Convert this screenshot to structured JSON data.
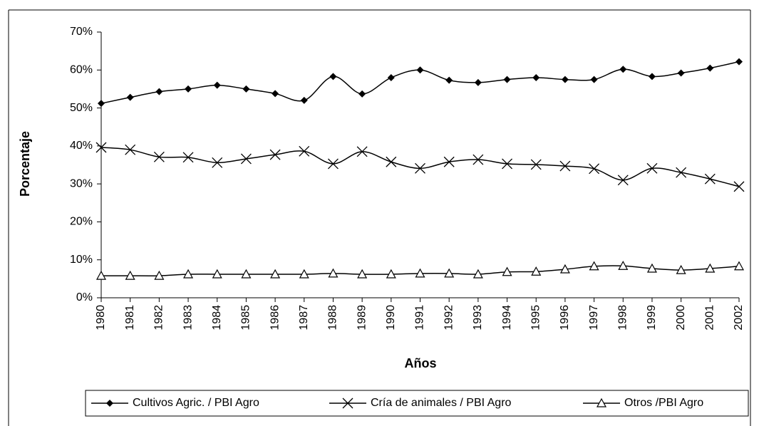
{
  "chart_data": {
    "type": "line",
    "categories": [
      "1980",
      "1981",
      "1982",
      "1983",
      "1984",
      "1985",
      "1986",
      "1987",
      "1988",
      "1989",
      "1990",
      "1991",
      "1992",
      "1993",
      "1994",
      "1995",
      "1996",
      "1997",
      "1998",
      "1999",
      "2000",
      "2001",
      "2002"
    ],
    "series": [
      {
        "name": "Cultivos Agric. / PBI Agro",
        "color": "#000000",
        "marker": "diamond",
        "values": [
          51.2,
          52.8,
          54.3,
          55,
          56,
          55,
          53.8,
          52,
          58.3,
          53.7,
          58,
          60,
          57.3,
          56.7,
          57.5,
          58,
          57.5,
          57.5,
          60.2,
          58.3,
          59.2,
          60.5,
          62.2
        ]
      },
      {
        "name": "Cría de animales / PBI Agro",
        "color": "#000000",
        "marker": "cross",
        "values": [
          39.6,
          39,
          37.1,
          37,
          35.6,
          36.6,
          37.7,
          38.6,
          35.3,
          38.5,
          35.8,
          34.1,
          35.8,
          36.4,
          35.3,
          35.1,
          34.7,
          34,
          31,
          34.1,
          33,
          31.3,
          29.3
        ]
      },
      {
        "name": "Otros /PBI Agro",
        "color": "#000000",
        "marker": "triangle",
        "values": [
          5.8,
          5.8,
          5.8,
          6.2,
          6.2,
          6.2,
          6.2,
          6.2,
          6.4,
          6.2,
          6.2,
          6.4,
          6.4,
          6.2,
          6.8,
          6.9,
          7.5,
          8.3,
          8.4,
          7.7,
          7.3,
          7.7,
          8.3
        ]
      }
    ],
    "x_label": "Años",
    "y_label": "Porcentaje",
    "ylim": [
      0,
      70
    ],
    "yticks": [
      {
        "value": 0,
        "label": "0%"
      },
      {
        "value": 10,
        "label": "10%"
      },
      {
        "value": 20,
        "label": "20%"
      },
      {
        "value": 30,
        "label": "30%"
      },
      {
        "value": 40,
        "label": "40%"
      },
      {
        "value": 50,
        "label": "50%"
      },
      {
        "value": 60,
        "label": "60%"
      },
      {
        "value": 70,
        "label": "70%"
      }
    ],
    "grid": false,
    "legend": "bottom"
  }
}
